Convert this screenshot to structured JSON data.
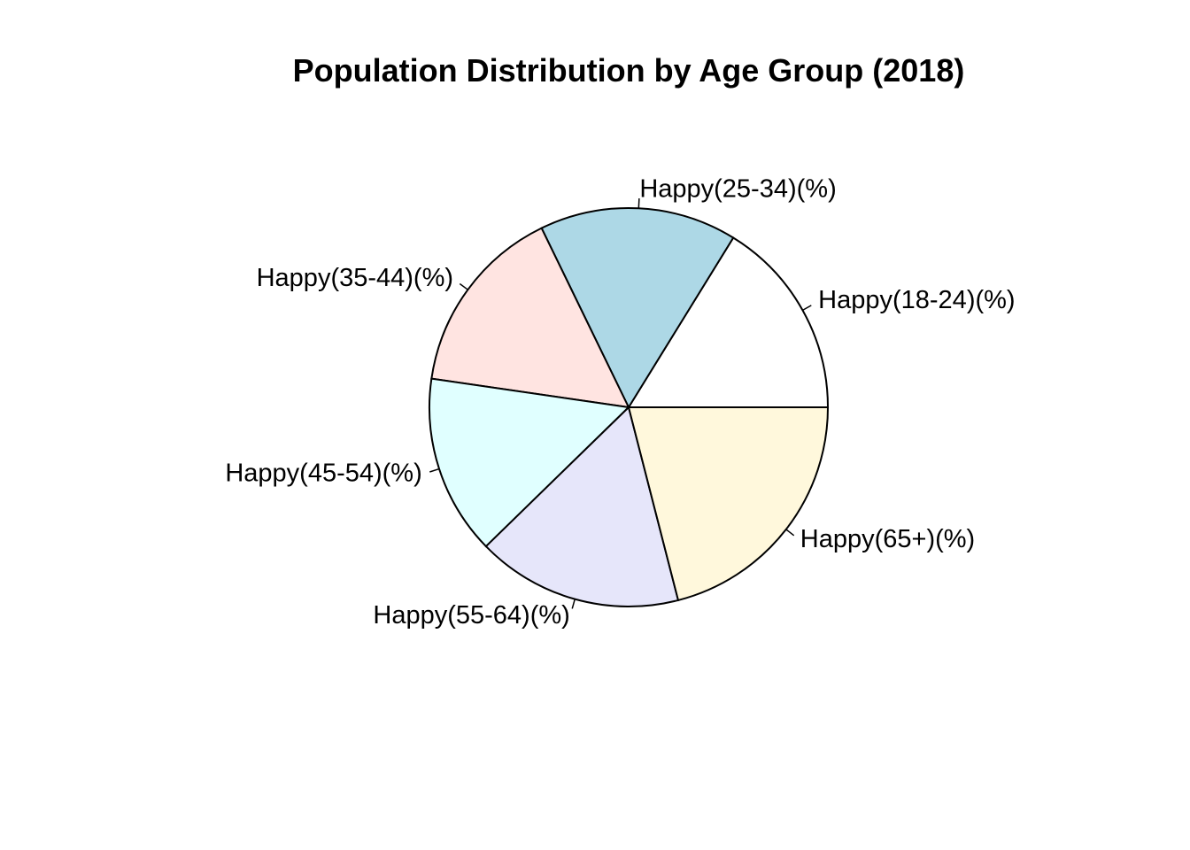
{
  "chart_data": {
    "type": "pie",
    "title": "Population Distribution by Age Group (2018)",
    "slices": [
      {
        "label": "Happy(18-24)(%)",
        "value": 16.2,
        "color": "#FFFFFF"
      },
      {
        "label": "Happy(25-34)(%)",
        "value": 16.0,
        "color": "#ADD8E6"
      },
      {
        "label": "Happy(35-44)(%)",
        "value": 15.5,
        "color": "#FFE4E1"
      },
      {
        "label": "Happy(45-54)(%)",
        "value": 14.6,
        "color": "#E0FFFF"
      },
      {
        "label": "Happy(55-64)(%)",
        "value": 16.7,
        "color": "#E6E6FA"
      },
      {
        "label": "Happy(65+)(%)",
        "value": 21.0,
        "color": "#FFF8DC"
      }
    ],
    "start_angle_deg": 0,
    "direction": "counterclockwise",
    "legend": "none"
  }
}
